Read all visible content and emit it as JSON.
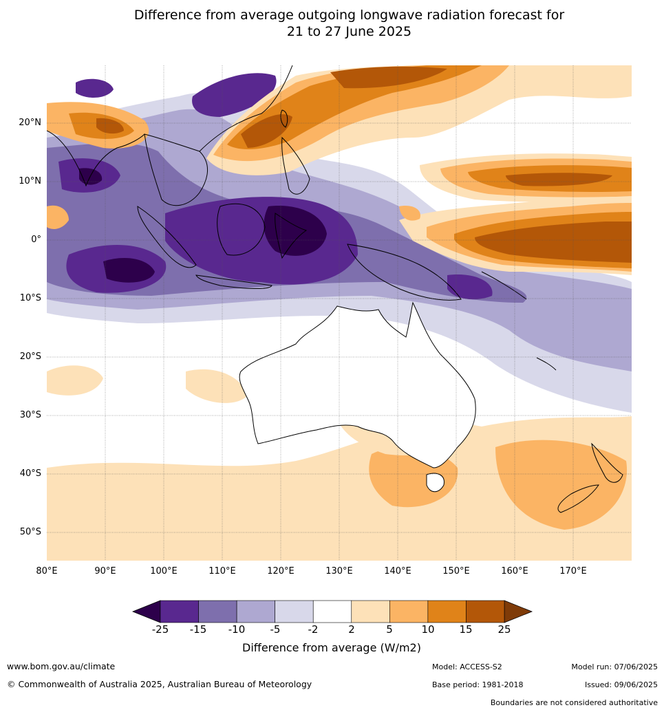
{
  "title_line1": "Difference from average outgoing longwave radiation forecast for",
  "title_line2": "21 to 27 June 2025",
  "map": {
    "lat_labels": [
      "20°N",
      "10°N",
      "0°",
      "10°S",
      "20°S",
      "30°S",
      "40°S",
      "50°S"
    ],
    "lon_labels": [
      "80°E",
      "90°E",
      "100°E",
      "110°E",
      "120°E",
      "130°E",
      "140°E",
      "150°E",
      "160°E",
      "170°E"
    ]
  },
  "colorbar": {
    "labels": [
      "-25",
      "-15",
      "-10",
      "-5",
      "-2",
      "2",
      "5",
      "10",
      "15",
      "25"
    ],
    "colors": [
      "#59288f",
      "#7e6fad",
      "#aea8d1",
      "#d8d8ea",
      "#ffffff",
      "#fde1b8",
      "#fbb464",
      "#e08319",
      "#b35708"
    ],
    "under_color": "#2d004b",
    "over_color": "#7f3b08",
    "title": "Difference from average (W/m2)"
  },
  "footer": {
    "website": "www.bom.gov.au/climate",
    "copyright": "© Commonwealth of Australia 2025, Australian Bureau of Meteorology",
    "model": "Model: ACCESS-S2",
    "base_period": "Base period: 1981-2018",
    "model_run": "Model run: 07/06/2025",
    "issued": "Issued: 09/06/2025",
    "boundaries_note": "Boundaries are not considered authoritative"
  }
}
